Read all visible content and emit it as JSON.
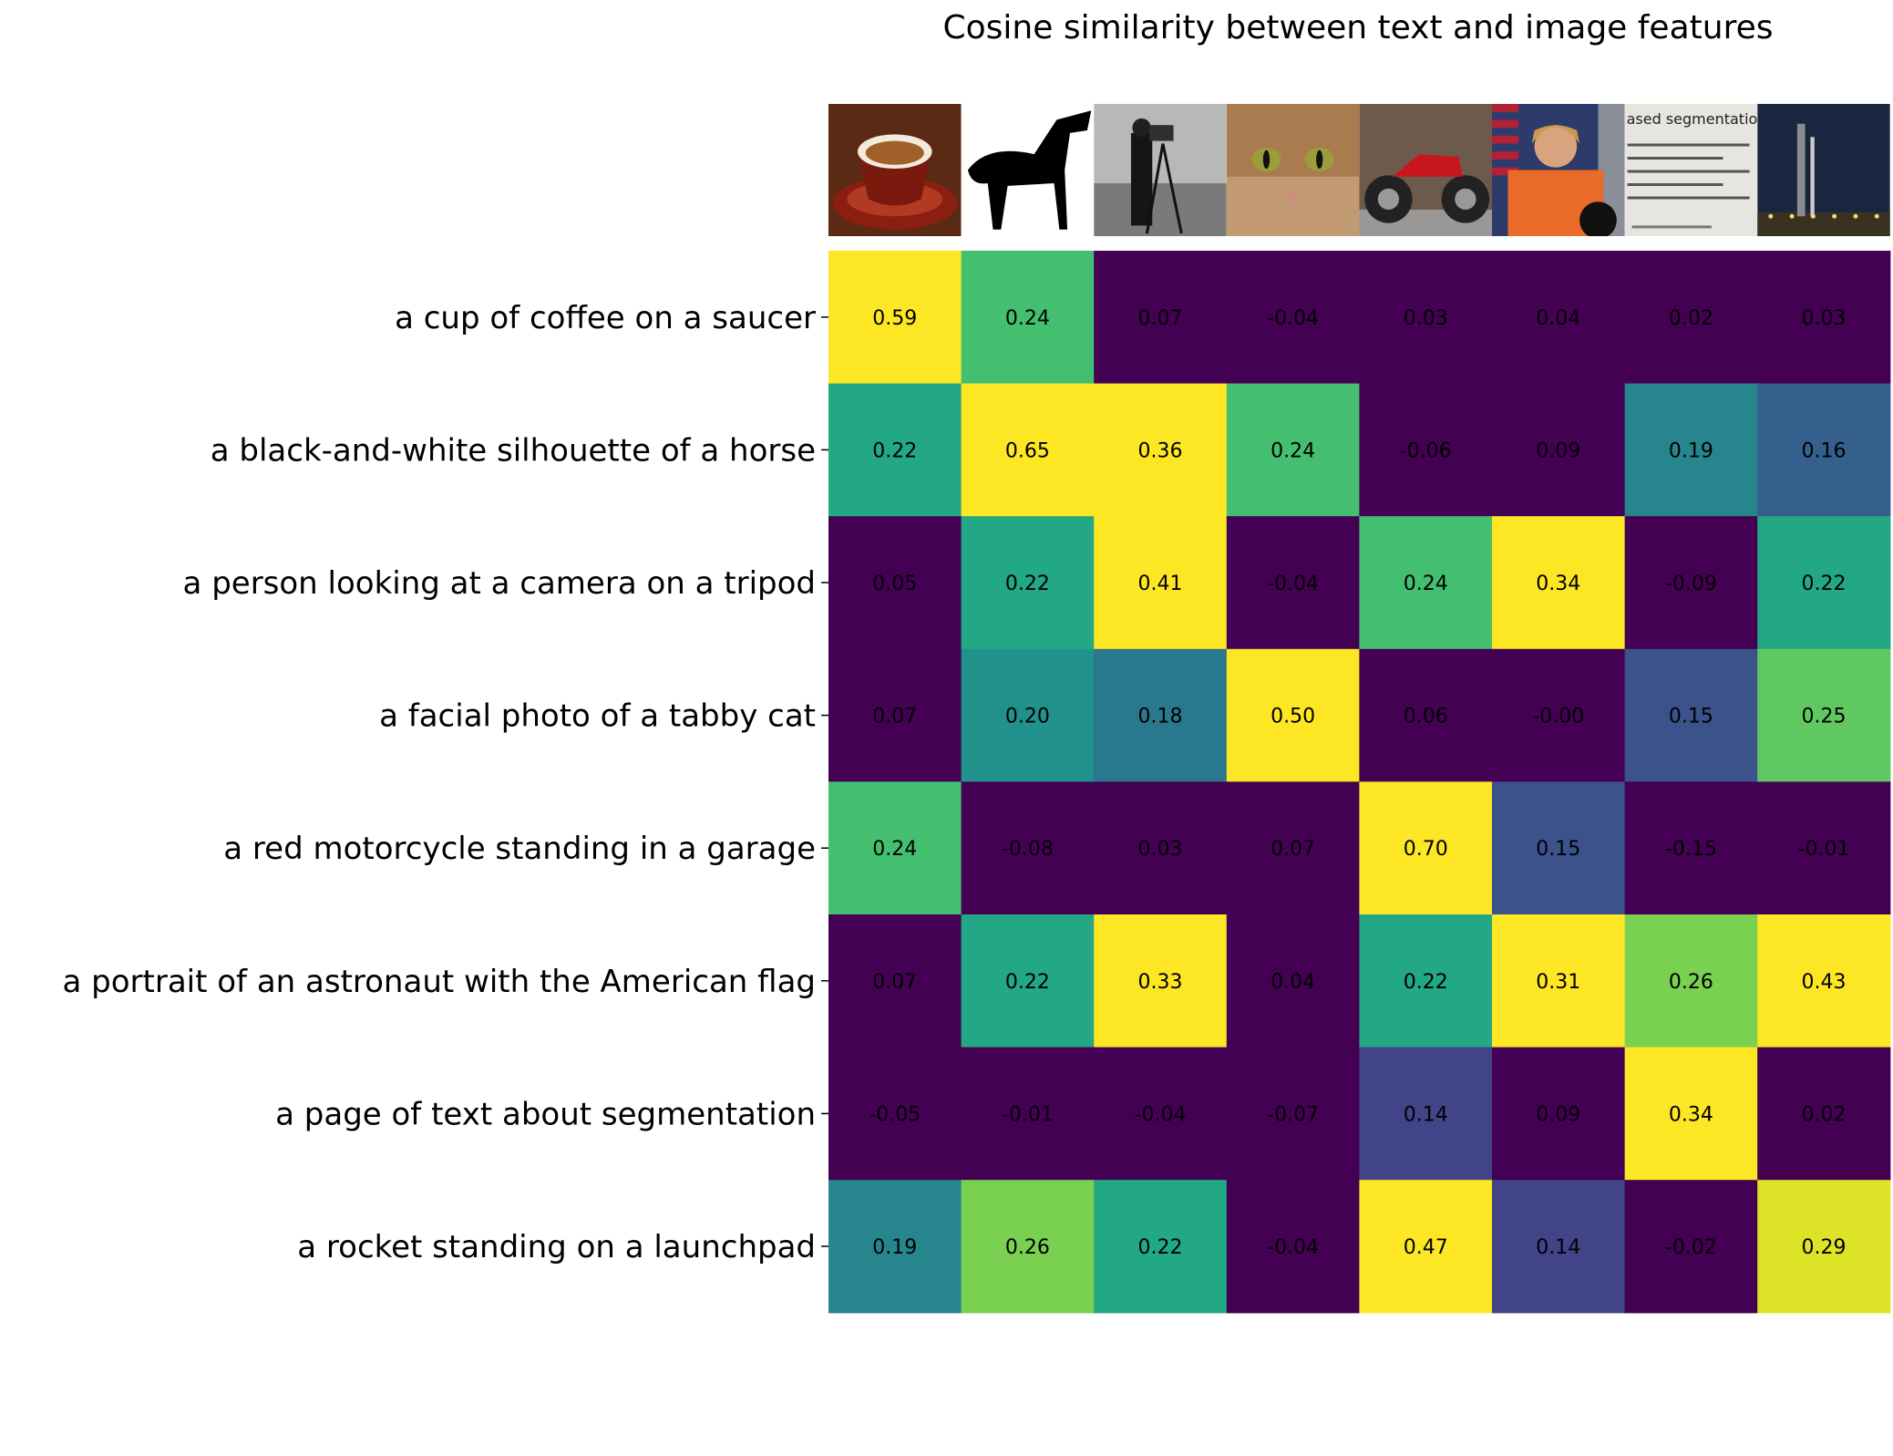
{
  "chart_data": {
    "type": "heatmap",
    "title": "Cosine similarity between text and image features",
    "rows": [
      "a cup of coffee on a saucer",
      "a black-and-white silhouette of a horse",
      "a person looking at a camera on a tripod",
      "a facial photo of a tabby cat",
      "a red motorcycle standing in a garage",
      "a portrait of an astronaut with the American flag",
      "a page of text about segmentation",
      "a rocket standing on a launchpad"
    ],
    "column_images": [
      {
        "name": "coffee-cup-image"
      },
      {
        "name": "horse-silhouette-image"
      },
      {
        "name": "cameraman-image"
      },
      {
        "name": "tabby-cat-image"
      },
      {
        "name": "motorcycle-image"
      },
      {
        "name": "astronaut-image"
      },
      {
        "name": "text-page-image",
        "visible_text": "ased segmentation"
      },
      {
        "name": "rocket-launchpad-image"
      }
    ],
    "values": [
      [
        0.59,
        0.24,
        0.07,
        -0.04,
        0.03,
        0.04,
        0.02,
        0.03
      ],
      [
        0.22,
        0.65,
        0.36,
        0.24,
        -0.06,
        0.09,
        0.19,
        0.16
      ],
      [
        0.05,
        0.22,
        0.41,
        -0.04,
        0.24,
        0.34,
        -0.09,
        0.22
      ],
      [
        0.07,
        0.2,
        0.18,
        0.5,
        0.06,
        -0.0,
        0.15,
        0.25
      ],
      [
        0.24,
        -0.08,
        0.03,
        0.07,
        0.7,
        0.15,
        -0.15,
        -0.01
      ],
      [
        0.07,
        0.22,
        0.33,
        0.04,
        0.22,
        0.31,
        0.26,
        0.43
      ],
      [
        -0.05,
        -0.01,
        -0.04,
        -0.07,
        0.14,
        0.09,
        0.34,
        0.02
      ],
      [
        0.19,
        0.26,
        0.22,
        -0.04,
        0.47,
        0.14,
        -0.02,
        0.29
      ]
    ],
    "value_labels": [
      [
        "0.59",
        "0.24",
        "0.07",
        "-0.04",
        "0.03",
        "0.04",
        "0.02",
        "0.03"
      ],
      [
        "0.22",
        "0.65",
        "0.36",
        "0.24",
        "-0.06",
        "0.09",
        "0.19",
        "0.16"
      ],
      [
        "0.05",
        "0.22",
        "0.41",
        "-0.04",
        "0.24",
        "0.34",
        "-0.09",
        "0.22"
      ],
      [
        "0.07",
        "0.20",
        "0.18",
        "0.50",
        "0.06",
        "-0.00",
        "0.15",
        "0.25"
      ],
      [
        "0.24",
        "-0.08",
        "0.03",
        "0.07",
        "0.70",
        "0.15",
        "-0.15",
        "-0.01"
      ],
      [
        "0.07",
        "0.22",
        "0.33",
        "0.04",
        "0.22",
        "0.31",
        "0.26",
        "0.43"
      ],
      [
        "-0.05",
        "-0.01",
        "-0.04",
        "-0.07",
        "0.14",
        "0.09",
        "0.34",
        "0.02"
      ],
      [
        "0.19",
        "0.26",
        "0.22",
        "-0.04",
        "0.47",
        "0.14",
        "-0.02",
        "0.29"
      ]
    ],
    "color_range": [
      0.1,
      0.3
    ],
    "colormap": "viridis",
    "grid": false
  }
}
